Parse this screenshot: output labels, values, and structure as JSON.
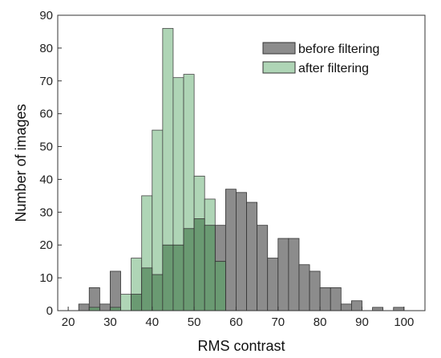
{
  "chart_data": {
    "type": "bar",
    "subtype": "overlapping-histogram",
    "title": "",
    "xlabel": "RMS contrast",
    "ylabel": "Number of images",
    "xlim": [
      17.5,
      105
    ],
    "ylim": [
      0,
      90
    ],
    "xticks": [
      20,
      30,
      40,
      50,
      60,
      70,
      80,
      90,
      100
    ],
    "yticks": [
      0,
      10,
      20,
      30,
      40,
      50,
      60,
      70,
      80,
      90
    ],
    "bin_width": 2.5,
    "bin_starts": [
      22.5,
      25,
      27.5,
      30,
      32.5,
      35,
      37.5,
      40,
      42.5,
      45,
      47.5,
      50,
      52.5,
      55,
      57.5,
      60,
      62.5,
      65,
      67.5,
      70,
      72.5,
      75,
      77.5,
      80,
      82.5,
      85,
      87.5,
      90,
      92.5,
      95,
      97.5,
      100
    ],
    "legend_position": "top-right",
    "grid": false,
    "series": [
      {
        "name": "before filtering",
        "color": "#8c8c8c",
        "values": [
          2,
          7,
          2,
          12,
          0,
          5,
          13,
          11,
          20,
          20,
          25,
          28,
          26,
          26,
          37,
          36,
          33,
          26,
          16,
          22,
          22,
          14,
          12,
          7,
          7,
          2,
          3,
          0,
          1,
          0,
          1,
          0
        ]
      },
      {
        "name": "after filtering",
        "color": "#afd5b6",
        "values": [
          0,
          1,
          0,
          1,
          5,
          16,
          35,
          55,
          86,
          71,
          72,
          41,
          34,
          15,
          0,
          0,
          0,
          0,
          0,
          0,
          0,
          0,
          0,
          0,
          0,
          0,
          0,
          0,
          0,
          0,
          0,
          0
        ]
      }
    ],
    "overlap_color": "#6a9a72"
  }
}
